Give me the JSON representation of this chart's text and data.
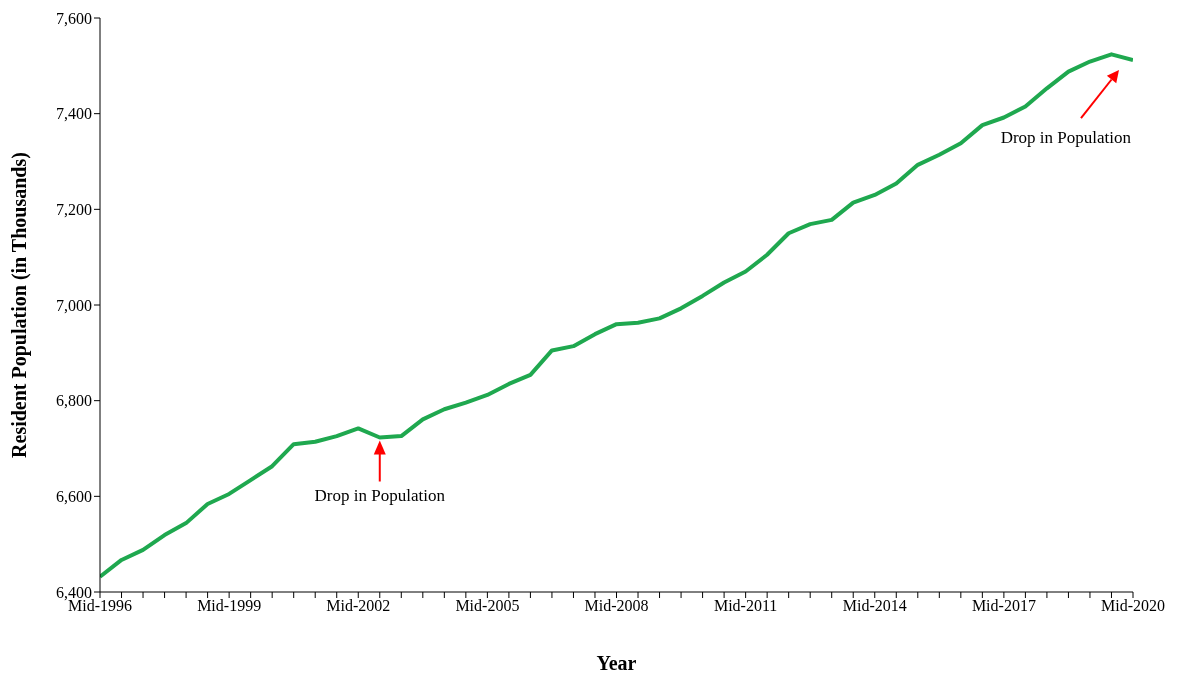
{
  "chart_data": {
    "type": "line",
    "xlabel": "Year",
    "ylabel": "Resident Population (in Thousands)",
    "categories": [
      "Mid-1996",
      null,
      null,
      null,
      null,
      null,
      "Mid-1999",
      null,
      null,
      null,
      null,
      null,
      "Mid-2002",
      null,
      null,
      null,
      null,
      null,
      "Mid-2005",
      null,
      null,
      null,
      null,
      null,
      "Mid-2008",
      null,
      null,
      null,
      null,
      null,
      "Mid-2011",
      null,
      null,
      null,
      null,
      null,
      "Mid-2014",
      null,
      null,
      null,
      null,
      null,
      "Mid-2017",
      null,
      null,
      null,
      null,
      null,
      "Mid-2020"
    ],
    "series": [
      {
        "color": "#1fa84f",
        "values": [
          6432,
          6467,
          6488,
          6519,
          6544,
          6584,
          6605,
          6634,
          6663,
          6709,
          6714,
          6726,
          6742,
          6723,
          6726,
          6761,
          6782,
          6796,
          6812,
          6835,
          6854,
          6905,
          6914,
          6939,
          6960,
          6963,
          6972,
          6993,
          7019,
          7047,
          7070,
          7105,
          7150,
          7169,
          7178,
          7214,
          7230,
          7254,
          7293,
          7314,
          7338,
          7376,
          7392,
          7415,
          7453,
          7488,
          7509,
          7524,
          7512
        ]
      }
    ],
    "ylim": [
      6400,
      7600
    ],
    "yticks": [
      {
        "value": 6400,
        "label": "6,400"
      },
      {
        "value": 6600,
        "label": "6,600"
      },
      {
        "value": 6800,
        "label": "6,800"
      },
      {
        "value": 7000,
        "label": "7,000"
      },
      {
        "value": 7200,
        "label": "7,200"
      },
      {
        "value": 7400,
        "label": "7,400"
      },
      {
        "value": 7600,
        "label": "7,600"
      }
    ],
    "annotations": [
      "Drop in Population",
      "Drop in Population"
    ],
    "marker": "none",
    "line_style": "solid",
    "grid": false,
    "legend": false
  }
}
